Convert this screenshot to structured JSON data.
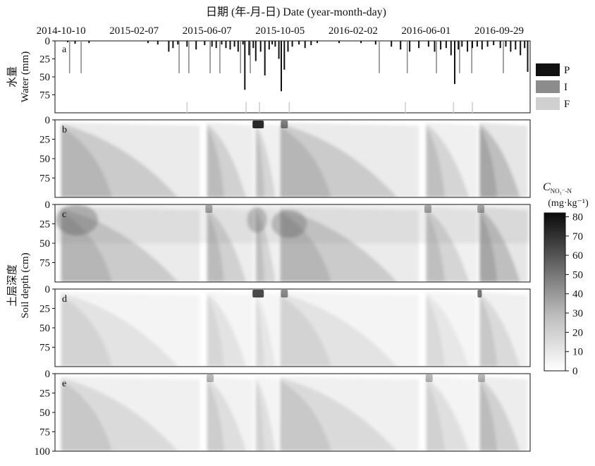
{
  "figure": {
    "top_title": "日期 (年-月-日) Date (year-month-day)",
    "water_axis_label_cn": "水量",
    "water_axis_label_en": "Water (mm)",
    "soil_axis_label_cn": "土层深度",
    "soil_axis_label_en": "Soil depth (cm)",
    "colorbar_title": "C",
    "colorbar_subscript": "NO₃⁻-N",
    "colorbar_unit": "(mg·kg⁻¹)"
  },
  "chart_data": [
    {
      "type": "bar",
      "panel": "a",
      "xlabel": "日期 (年-月-日) Date (year-month-day)",
      "ylabel": "Water (mm)",
      "x_ticks": [
        "2014-10-10",
        "2015-02-07",
        "2015-06-07",
        "2015-10-05",
        "2016-02-02",
        "2016-06-01",
        "2016-09-29"
      ],
      "y_ticks": [
        0,
        25,
        50,
        75
      ],
      "ylim": [
        0,
        100
      ],
      "y_inverted": true,
      "legend": {
        "placement": "right",
        "entries": [
          {
            "name": "P",
            "color": "#111111"
          },
          {
            "name": "I",
            "color": "#8c8c8c"
          },
          {
            "name": "F",
            "color": "#d0d0d0"
          }
        ]
      },
      "series": [
        {
          "name": "P",
          "color": "#111111",
          "points": [
            [
              "2014-10-21",
              2
            ],
            [
              "2014-11-02",
              4
            ],
            [
              "2014-11-25",
              3
            ],
            [
              "2015-03-02",
              3
            ],
            [
              "2015-03-18",
              5
            ],
            [
              "2015-04-05",
              15
            ],
            [
              "2015-04-12",
              10
            ],
            [
              "2015-04-20",
              5
            ],
            [
              "2015-05-05",
              8
            ],
            [
              "2015-05-20",
              12
            ],
            [
              "2015-06-03",
              6
            ],
            [
              "2015-06-15",
              8
            ],
            [
              "2015-06-22",
              10
            ],
            [
              "2015-07-01",
              5
            ],
            [
              "2015-07-08",
              10
            ],
            [
              "2015-07-15",
              12
            ],
            [
              "2015-07-22",
              8
            ],
            [
              "2015-07-28",
              15
            ],
            [
              "2015-08-05",
              5
            ],
            [
              "2015-08-08",
              68
            ],
            [
              "2015-08-15",
              20
            ],
            [
              "2015-08-22",
              10
            ],
            [
              "2015-08-26",
              28
            ],
            [
              "2015-09-03",
              15
            ],
            [
              "2015-09-10",
              48
            ],
            [
              "2015-09-17",
              12
            ],
            [
              "2015-09-22",
              5
            ],
            [
              "2015-09-27",
              8
            ],
            [
              "2015-10-03",
              25
            ],
            [
              "2015-10-07",
              70
            ],
            [
              "2015-10-12",
              40
            ],
            [
              "2015-10-18",
              15
            ],
            [
              "2015-10-25",
              8
            ],
            [
              "2015-11-05",
              5
            ],
            [
              "2015-11-15",
              10
            ],
            [
              "2015-11-25",
              6
            ],
            [
              "2015-12-05",
              3
            ],
            [
              "2016-01-10",
              3
            ],
            [
              "2016-02-15",
              3
            ],
            [
              "2016-03-10",
              5
            ],
            [
              "2016-04-05",
              8
            ],
            [
              "2016-04-20",
              12
            ],
            [
              "2016-05-05",
              15
            ],
            [
              "2016-05-20",
              10
            ],
            [
              "2016-06-05",
              8
            ],
            [
              "2016-06-15",
              15
            ],
            [
              "2016-06-25",
              12
            ],
            [
              "2016-07-04",
              10
            ],
            [
              "2016-07-12",
              20
            ],
            [
              "2016-07-18",
              60
            ],
            [
              "2016-07-24",
              12
            ],
            [
              "2016-07-30",
              8
            ],
            [
              "2016-08-08",
              15
            ],
            [
              "2016-08-16",
              10
            ],
            [
              "2016-08-24",
              8
            ],
            [
              "2016-09-01",
              12
            ],
            [
              "2016-09-10",
              8
            ],
            [
              "2016-09-20",
              6
            ],
            [
              "2016-10-01",
              10
            ],
            [
              "2016-10-10",
              8
            ],
            [
              "2016-10-18",
              15
            ],
            [
              "2016-10-26",
              12
            ],
            [
              "2016-11-03",
              20
            ],
            [
              "2016-11-10",
              10
            ],
            [
              "2016-11-15",
              43
            ]
          ]
        },
        {
          "name": "I",
          "color": "#8c8c8c",
          "points": [
            [
              "2014-10-24",
              45
            ],
            [
              "2014-11-12",
              45
            ],
            [
              "2015-04-22",
              45
            ],
            [
              "2015-05-08",
              45
            ],
            [
              "2015-06-12",
              45
            ],
            [
              "2015-06-28",
              45
            ],
            [
              "2015-08-01",
              45
            ],
            [
              "2015-08-17",
              45
            ],
            [
              "2016-03-16",
              45
            ],
            [
              "2016-05-01",
              45
            ],
            [
              "2016-06-18",
              45
            ],
            [
              "2016-07-26",
              45
            ],
            [
              "2016-08-15",
              45
            ],
            [
              "2016-10-06",
              45
            ]
          ]
        },
        {
          "name": "F",
          "color": "#d0d0d0",
          "points": [
            [
              "2015-05-05",
              15
            ],
            [
              "2015-08-10",
              15
            ],
            [
              "2015-09-01",
              15
            ],
            [
              "2015-10-20",
              15
            ],
            [
              "2016-04-28",
              15
            ],
            [
              "2016-07-16",
              15
            ],
            [
              "2016-08-16",
              15
            ]
          ]
        }
      ]
    },
    {
      "type": "heatmap",
      "panels": [
        "b",
        "c",
        "d",
        "e"
      ],
      "x_ticks": [
        "2014-10-10",
        "2015-02-07",
        "2015-06-07",
        "2015-10-05",
        "2016-02-02",
        "2016-06-01",
        "2016-09-29"
      ],
      "ylabel": "Soil depth (cm)",
      "y_ticks": [
        0,
        25,
        50,
        75,
        100
      ],
      "ylim": [
        0,
        100
      ],
      "y_inverted": true,
      "colorbar": {
        "ticks": [
          0,
          10,
          20,
          30,
          40,
          50,
          60,
          70,
          80
        ],
        "range": [
          0,
          82
        ]
      }
    }
  ]
}
